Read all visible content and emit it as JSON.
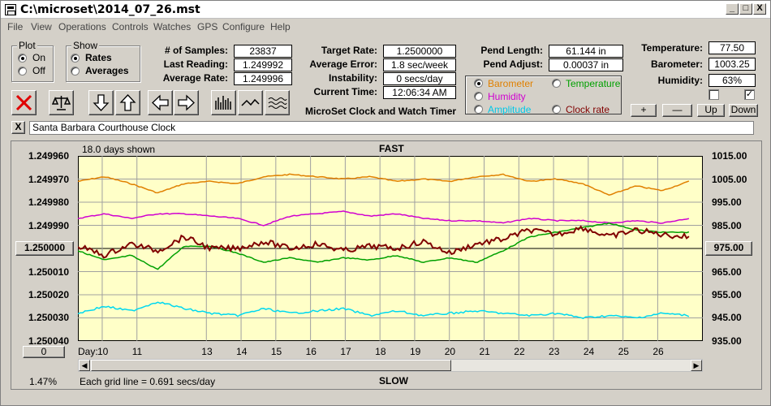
{
  "window": {
    "title": "C:\\microset\\2014_07_26.mst",
    "min": "_",
    "max": "□",
    "close": "X"
  },
  "menu": [
    "File",
    "View",
    "Operations",
    "Controls",
    "Watches",
    "GPS",
    "Configure",
    "Help"
  ],
  "plot_group": {
    "title": "Plot",
    "on_label": "On",
    "off_label": "Off",
    "selected": "On"
  },
  "show_group": {
    "title": "Show",
    "rates_label": "Rates",
    "averages_label": "Averages",
    "selected": "Rates"
  },
  "stats": {
    "samples_label": "# of Samples:",
    "samples": "23837",
    "last_label": "Last Reading:",
    "last": "1.249992",
    "avg_label": "Average Rate:",
    "avg": "1.249996",
    "target_label": "Target Rate:",
    "target": "1.2500000",
    "error_label": "Average Error:",
    "error": "1.8 sec/week",
    "instab_label": "Instability:",
    "instab": "0 secs/day",
    "time_label": "Current Time:",
    "time": "12:06:34 AM",
    "pend_len_label": "Pend Length:",
    "pend_len": "61.144 in",
    "pend_adj_label": "Pend Adjust:",
    "pend_adj": "0.00037 in",
    "temp_label": "Temperature:",
    "temp": "77.50",
    "baro_label": "Barometer:",
    "baro": "1003.25",
    "hum_label": "Humidity:",
    "hum": "63%"
  },
  "app_caption": "MicroSet Clock and Watch Timer",
  "sensors": {
    "barometer": "Barometer",
    "temperature": "Temperature",
    "humidity": "Humidity",
    "amplitude": "Amplitude",
    "clock_rate": "Clock rate",
    "selected": "Barometer"
  },
  "adjust_buttons": {
    "plus": "+",
    "minus": "—",
    "up": "Up",
    "down": "Down"
  },
  "clock_name": "Santa Barbara Courthouse Clock",
  "close_small": "X",
  "colors": {
    "barometer": "#e08000",
    "temperature": "#00a000",
    "humidity": "#d000d0",
    "amplitude": "#00d8f0",
    "clock_rate": "#800000",
    "plot_bg": "#ffffc8"
  },
  "chart_data": {
    "type": "line",
    "title": "FAST",
    "footer": "SLOW",
    "days_shown": "18.0 days shown",
    "grid_note": "Each grid line = 0.691 secs/day",
    "percent": "1.47%",
    "day_label": "Day:",
    "left_ticks": [
      "1.249960",
      "1.249970",
      "1.249980",
      "1.249990",
      "1.250000",
      "1.250010",
      "1.250020",
      "1.250030",
      "1.250040"
    ],
    "right_ticks": [
      "1015.00",
      "1005.00",
      "995.00",
      "985.00",
      "975.00",
      "965.00",
      "955.00",
      "945.00",
      "935.00"
    ],
    "x_ticks": [
      "10",
      "11",
      "13",
      "14",
      "15",
      "16",
      "17",
      "18",
      "19",
      "20",
      "21",
      "22",
      "23",
      "24",
      "25",
      "26"
    ],
    "left_button": "1.250000",
    "right_button": "975.00",
    "zero_button": "0",
    "ylim_left": [
      1.24996,
      1.25004
    ],
    "ylim_right": [
      935,
      1015
    ],
    "series": [
      {
        "name": "Barometer",
        "values": [
          1004,
          1006,
          1003,
          999,
          1003,
          1004,
          1003,
          1006,
          1007,
          1006,
          1005,
          1006,
          1004,
          1005,
          1004,
          1006,
          1007,
          1004,
          1005,
          1003,
          998,
          1002,
          1000,
          1004
        ]
      },
      {
        "name": "Humidity",
        "values": [
          988,
          990,
          988,
          990,
          990,
          989,
          988,
          985,
          989,
          990,
          991,
          989,
          990,
          988,
          987,
          987,
          986,
          988,
          987,
          987,
          986,
          987,
          986,
          988
        ]
      },
      {
        "name": "Temperature",
        "values": [
          974,
          970,
          972,
          966,
          976,
          976,
          973,
          969,
          971,
          969,
          971,
          970,
          972,
          969,
          971,
          969,
          974,
          980,
          982,
          984,
          986,
          983,
          982,
          982
        ]
      },
      {
        "name": "Clock rate",
        "values": [
          1.249999,
          1.250003,
          1.249998,
          1.250001,
          1.249995,
          1.25,
          1.25,
          1.249997,
          1.25,
          1.249998,
          1.250001,
          1.249999,
          1.25,
          1.249997,
          1.250002,
          1.249998,
          1.249996,
          1.249992,
          1.249994,
          1.249991,
          1.249995,
          1.249992,
          1.249994,
          1.249995
        ]
      },
      {
        "name": "Amplitude",
        "values": [
          947,
          950,
          948,
          952,
          949,
          947,
          946,
          949,
          947,
          948,
          949,
          946,
          948,
          946,
          947,
          948,
          947,
          946,
          947,
          945,
          946,
          945,
          947,
          946
        ]
      }
    ]
  }
}
